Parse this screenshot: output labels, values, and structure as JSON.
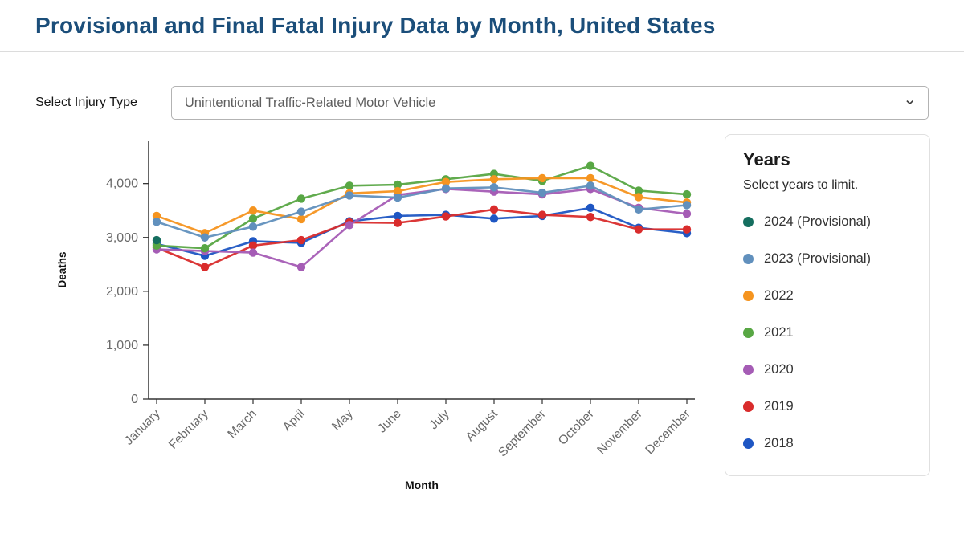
{
  "header": {
    "title": "Provisional and Final Fatal Injury Data by Month, United States",
    "title_color": "#1b4e7a"
  },
  "controls": {
    "injury_type_label": "Select Injury Type",
    "injury_type_value": "Unintentional Traffic-Related Motor Vehicle"
  },
  "icons": {
    "chevron_down": "⌄"
  },
  "years_panel": {
    "title": "Years",
    "subtitle": "Select years to limit."
  },
  "chart_data": {
    "type": "line",
    "title": "",
    "xlabel": "Month",
    "ylabel": "Deaths",
    "ylim": [
      0,
      4800
    ],
    "yticks": [
      0,
      1000,
      2000,
      3000,
      4000
    ],
    "grid": false,
    "legend_position": "right",
    "categories": [
      "January",
      "February",
      "March",
      "April",
      "May",
      "June",
      "July",
      "August",
      "September",
      "October",
      "November",
      "December"
    ],
    "series": [
      {
        "name": "2024 (Provisional)",
        "color": "#156e5f",
        "values": [
          2950,
          null,
          null,
          null,
          null,
          null,
          null,
          null,
          null,
          null,
          null,
          null
        ]
      },
      {
        "name": "2023 (Provisional)",
        "color": "#6190bd",
        "values": [
          3290,
          3000,
          3200,
          3480,
          3780,
          3740,
          3910,
          3930,
          3830,
          3960,
          3520,
          3600
        ]
      },
      {
        "name": "2022",
        "color": "#f5941f",
        "values": [
          3400,
          3080,
          3500,
          3340,
          3820,
          3860,
          4030,
          4080,
          4100,
          4100,
          3750,
          3650
        ]
      },
      {
        "name": "2021",
        "color": "#58a744",
        "values": [
          2850,
          2800,
          3350,
          3720,
          3960,
          3980,
          4080,
          4180,
          4050,
          4330,
          3870,
          3800
        ]
      },
      {
        "name": "2020",
        "color": "#a55cb5",
        "values": [
          2780,
          2750,
          2720,
          2450,
          3230,
          3790,
          3900,
          3850,
          3800,
          3900,
          3550,
          3440
        ]
      },
      {
        "name": "2019",
        "color": "#d92c2c",
        "values": [
          2810,
          2450,
          2850,
          2950,
          3280,
          3270,
          3390,
          3520,
          3420,
          3380,
          3150,
          3150
        ]
      },
      {
        "name": "2018",
        "color": "#1e56c3",
        "values": [
          2880,
          2660,
          2930,
          2900,
          3300,
          3400,
          3420,
          3350,
          3400,
          3550,
          3180,
          3080
        ]
      }
    ]
  }
}
